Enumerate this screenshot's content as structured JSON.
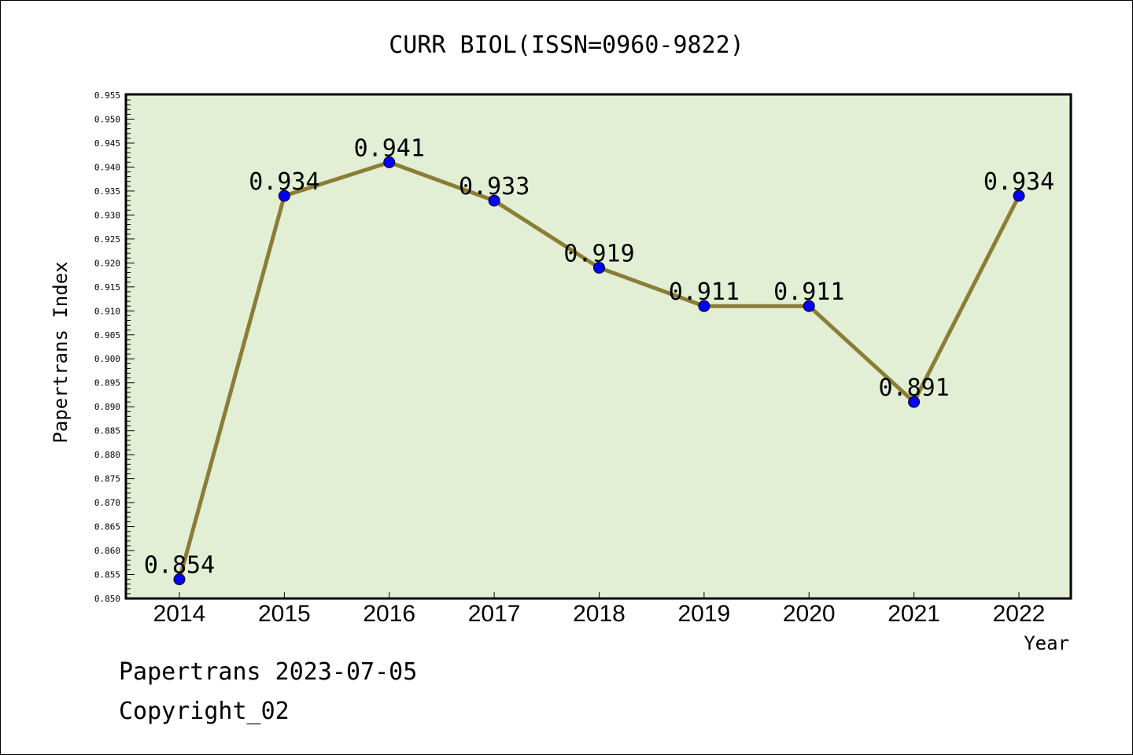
{
  "chart_data": {
    "type": "line",
    "title": "CURR BIOL(ISSN=0960-9822)",
    "xlabel": "Year",
    "ylabel": "Papertrans Index",
    "categories": [
      "2014",
      "2015",
      "2016",
      "2017",
      "2018",
      "2019",
      "2020",
      "2021",
      "2022"
    ],
    "series": [
      {
        "values": [
          0.854,
          0.934,
          0.941,
          0.933,
          0.919,
          0.911,
          0.911,
          0.891,
          0.934
        ],
        "data_labels": [
          "0.854",
          "0.934",
          "0.941",
          "0.933",
          "0.919",
          "0.911",
          "0.911",
          "0.891",
          "0.934"
        ]
      }
    ],
    "ylim": [
      0.85,
      0.955
    ],
    "ytick_step": 0.005,
    "grid": false,
    "colors": {
      "plot_background": "#e2efd5",
      "line": "#8b7d35",
      "marker": "#0000ff",
      "text": "#000000"
    }
  },
  "footer": {
    "line1": "Papertrans 2023-07-05",
    "line2": "Copyright_02"
  }
}
